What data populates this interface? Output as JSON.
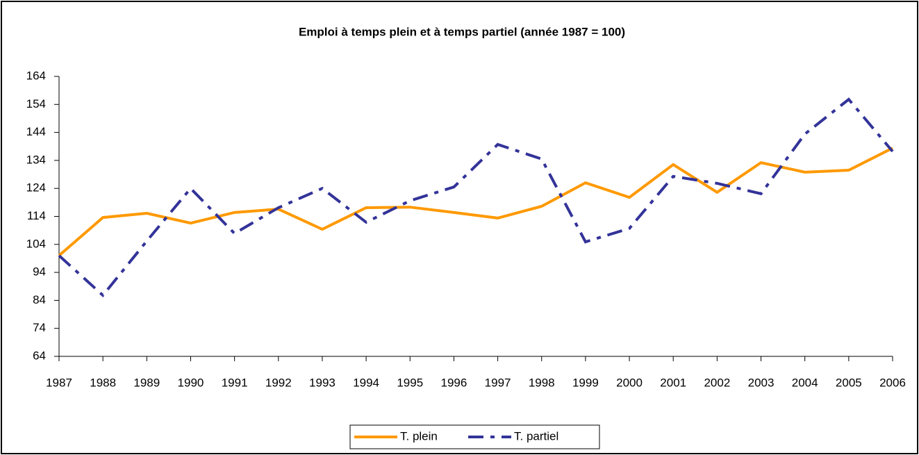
{
  "chart_data": {
    "type": "line",
    "title": "Emploi à temps plein et à temps partiel (année 1987 = 100)",
    "categories": [
      "1987",
      "1988",
      "1989",
      "1990",
      "1991",
      "1992",
      "1993",
      "1994",
      "1995",
      "1996",
      "1997",
      "1998",
      "1999",
      "2000",
      "2001",
      "2002",
      "2003",
      "2004",
      "2005",
      "2006"
    ],
    "series": [
      {
        "name": "T. plein",
        "color": "#ff9900",
        "values": [
          100,
          113.6,
          115.1,
          111.6,
          115.4,
          116.6,
          109.4,
          117.1,
          117.3,
          115.4,
          113.4,
          117.6,
          126,
          120.8,
          132.5,
          122.6,
          133.2,
          129.8,
          130.5,
          138.4
        ]
      },
      {
        "name": "T. partiel",
        "color": "#333399",
        "values": [
          100,
          85.8,
          105.2,
          124,
          107.9,
          117.1,
          124,
          111.9,
          119.6,
          124.5,
          139.7,
          134.5,
          104.9,
          109.7,
          128.3,
          125.8,
          122.1,
          143.4,
          155.8,
          137.2
        ]
      }
    ],
    "ylim": [
      64,
      164
    ],
    "yticks": [
      64,
      74,
      84,
      94,
      104,
      114,
      124,
      134,
      144,
      154,
      164
    ],
    "legend": "bottom"
  }
}
